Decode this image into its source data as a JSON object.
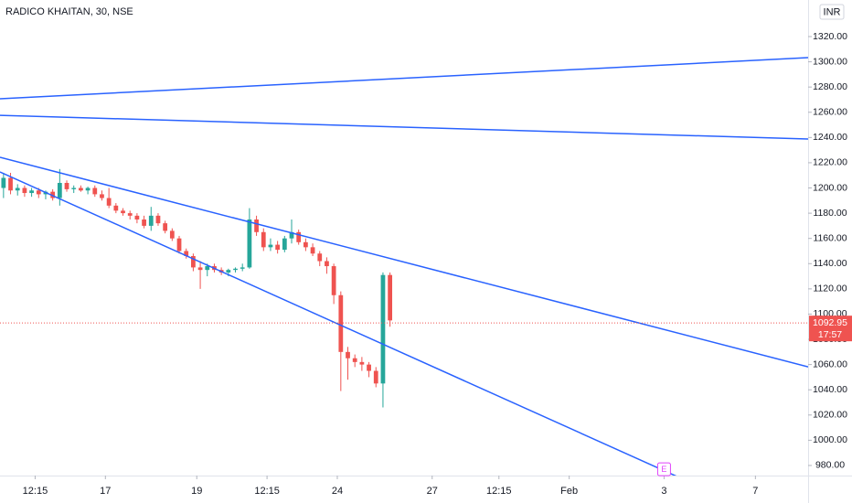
{
  "chart_data": {
    "type": "candlestick",
    "title": "RADICO KHAITAN, 30, NSE",
    "currency": "INR",
    "up_color": "#26a69a",
    "down_color": "#ef5350",
    "line_color": "#2962ff",
    "ylim": [
      972,
      1349
    ],
    "yticks": [
      {
        "value": 980,
        "label": "980.00"
      },
      {
        "value": 1000,
        "label": "1000.00"
      },
      {
        "value": 1020,
        "label": "1020.00"
      },
      {
        "value": 1040,
        "label": "1040.00"
      },
      {
        "value": 1060,
        "label": "1060.00"
      },
      {
        "value": 1080,
        "label": "1080.00"
      },
      {
        "value": 1100,
        "label": "1100.00"
      },
      {
        "value": 1120,
        "label": "1120.00"
      },
      {
        "value": 1140,
        "label": "1140.00"
      },
      {
        "value": 1160,
        "label": "1160.00"
      },
      {
        "value": 1180,
        "label": "1180.00"
      },
      {
        "value": 1200,
        "label": "1200.00"
      },
      {
        "value": 1220,
        "label": "1220.00"
      },
      {
        "value": 1240,
        "label": "1240.00"
      },
      {
        "value": 1260,
        "label": "1260.00"
      },
      {
        "value": 1280,
        "label": "1280.00"
      },
      {
        "value": 1300,
        "label": "1300.00"
      },
      {
        "value": 1320,
        "label": "1320.00"
      }
    ],
    "xlim": [
      0,
      230
    ],
    "xticks": [
      {
        "value": 10,
        "label": "12:15"
      },
      {
        "value": 30,
        "label": "17"
      },
      {
        "value": 56,
        "label": "19"
      },
      {
        "value": 76,
        "label": "12:15"
      },
      {
        "value": 96,
        "label": "24"
      },
      {
        "value": 123,
        "label": "27"
      },
      {
        "value": 142,
        "label": "12:15"
      },
      {
        "value": 162,
        "label": "Feb"
      },
      {
        "value": 189,
        "label": "3"
      },
      {
        "value": 215,
        "label": "7"
      }
    ],
    "x": [
      1,
      3,
      5,
      7,
      9,
      11,
      13,
      15,
      17,
      19,
      21,
      23,
      25,
      27,
      29,
      31,
      33,
      35,
      37,
      39,
      41,
      43,
      45,
      47,
      49,
      51,
      53,
      55,
      57,
      59,
      61,
      63,
      65,
      67,
      69,
      71,
      73,
      75,
      77,
      79,
      81,
      83,
      85,
      87,
      89,
      91,
      93,
      95,
      97,
      99,
      101,
      103,
      105,
      107,
      109,
      111
    ],
    "open": [
      1200,
      1208,
      1198,
      1200,
      1196,
      1198,
      1195,
      1197,
      1192,
      1204,
      1199,
      1200,
      1198,
      1200,
      1195,
      1192,
      1186,
      1182,
      1180,
      1178,
      1175,
      1170,
      1178,
      1172,
      1166,
      1160,
      1150,
      1146,
      1137,
      1135,
      1138,
      1135,
      1133,
      1135,
      1136,
      1137,
      1175,
      1165,
      1153,
      1155,
      1151,
      1160,
      1165,
      1157,
      1153,
      1148,
      1142,
      1138,
      1115,
      1070,
      1065,
      1062,
      1060,
      1055,
      1045,
      1131
    ],
    "high": [
      1212,
      1212,
      1203,
      1202,
      1200,
      1200,
      1198,
      1199,
      1215,
      1206,
      1202,
      1202,
      1201,
      1202,
      1198,
      1200,
      1188,
      1184,
      1182,
      1180,
      1178,
      1185,
      1180,
      1174,
      1168,
      1162,
      1152,
      1148,
      1142,
      1140,
      1140,
      1137,
      1136,
      1137,
      1140,
      1184,
      1178,
      1168,
      1160,
      1158,
      1162,
      1175,
      1167,
      1160,
      1156,
      1150,
      1145,
      1140,
      1118,
      1074,
      1068,
      1066,
      1062,
      1058,
      1133,
      1133
    ],
    "low": [
      1192,
      1195,
      1194,
      1193,
      1193,
      1192,
      1191,
      1190,
      1186,
      1197,
      1196,
      1197,
      1195,
      1193,
      1190,
      1184,
      1180,
      1178,
      1175,
      1172,
      1168,
      1166,
      1170,
      1164,
      1158,
      1148,
      1144,
      1134,
      1120,
      1130,
      1133,
      1131,
      1130,
      1133,
      1134,
      1136,
      1162,
      1150,
      1150,
      1148,
      1149,
      1156,
      1155,
      1150,
      1146,
      1138,
      1132,
      1108,
      1039,
      1048,
      1058,
      1055,
      1050,
      1042,
      1026,
      1090
    ],
    "close": [
      1208,
      1198,
      1200,
      1196,
      1198,
      1195,
      1197,
      1192,
      1204,
      1199,
      1200,
      1198,
      1200,
      1195,
      1192,
      1186,
      1182,
      1180,
      1178,
      1175,
      1170,
      1178,
      1172,
      1166,
      1160,
      1150,
      1146,
      1137,
      1135,
      1138,
      1135,
      1133,
      1135,
      1136,
      1137,
      1175,
      1165,
      1153,
      1155,
      1151,
      1160,
      1165,
      1157,
      1153,
      1148,
      1142,
      1138,
      1115,
      1070,
      1065,
      1062,
      1060,
      1055,
      1045,
      1131,
      1095
    ],
    "trend_lines": [
      {
        "x": [
          0,
          230
        ],
        "y": [
          1270.7,
          1303.3
        ]
      },
      {
        "x": [
          0,
          230
        ],
        "y": [
          1257.6,
          1238.8
        ]
      },
      {
        "x": [
          0,
          230
        ],
        "y": [
          1224.3,
          1058.2
        ]
      },
      {
        "x": [
          0,
          193.3
        ],
        "y": [
          1212.7,
          970.5
        ]
      }
    ],
    "last_price": 1092.95,
    "countdown": "17:57",
    "events": [
      {
        "label": "E",
        "x": 189,
        "y": 977
      }
    ]
  }
}
